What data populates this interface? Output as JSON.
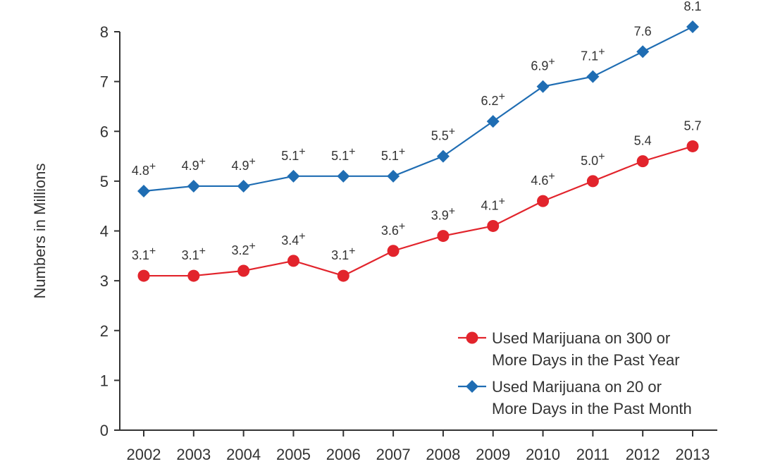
{
  "chart_data": {
    "type": "line",
    "ylabel": "Numbers in Millions",
    "xlabel": "",
    "ylim": [
      0,
      8
    ],
    "y_ticks": [
      "0",
      "1",
      "2",
      "3",
      "4",
      "5",
      "6",
      "7",
      "8"
    ],
    "categories": [
      "2002",
      "2003",
      "2004",
      "2005",
      "2006",
      "2007",
      "2008",
      "2009",
      "2010",
      "2011",
      "2012",
      "2013"
    ],
    "grid": false,
    "legend_position": "bottom-right",
    "series": [
      {
        "name": "Used Marijuana on 300 or More Days in the Past Year",
        "legend_lines": [
          "Used Marijuana on 300 or",
          "More Days in the Past Year"
        ],
        "marker": "circle",
        "color": "#e2242c",
        "values": [
          3.1,
          3.1,
          3.2,
          3.4,
          3.1,
          3.6,
          3.9,
          4.1,
          4.6,
          5.0,
          5.4,
          5.7
        ],
        "labels": [
          "3.1",
          "3.1",
          "3.2",
          "3.4",
          "3.1",
          "3.6",
          "3.9",
          "4.1",
          "4.6",
          "5.0",
          "5.4",
          "5.7"
        ],
        "plus": [
          true,
          true,
          true,
          true,
          true,
          true,
          true,
          true,
          true,
          true,
          false,
          false
        ]
      },
      {
        "name": "Used Marijuana on 20 or More Days in the Past Month",
        "legend_lines": [
          "Used Marijuana on 20 or",
          "More Days in the Past Month"
        ],
        "marker": "diamond",
        "color": "#1f6db3",
        "values": [
          4.8,
          4.9,
          4.9,
          5.1,
          5.1,
          5.1,
          5.5,
          6.2,
          6.9,
          7.1,
          7.6,
          8.1
        ],
        "labels": [
          "4.8",
          "4.9",
          "4.9",
          "5.1",
          "5.1",
          "5.1",
          "5.5",
          "6.2",
          "6.9",
          "7.1",
          "7.6",
          "8.1"
        ],
        "plus": [
          true,
          true,
          true,
          true,
          true,
          true,
          true,
          true,
          true,
          true,
          false,
          false
        ]
      }
    ],
    "significance_mark": "+"
  }
}
